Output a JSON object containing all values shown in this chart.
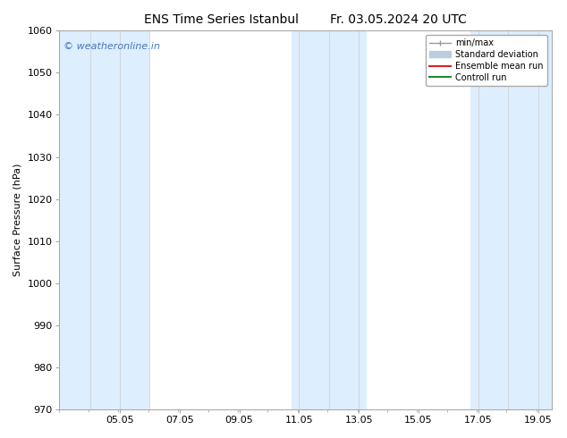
{
  "title_left": "ENS Time Series Istanbul",
  "title_right": "Fr. 03.05.2024 20 UTC",
  "ylabel": "Surface Pressure (hPa)",
  "ylim": [
    970,
    1060
  ],
  "yticks": [
    970,
    980,
    990,
    1000,
    1010,
    1020,
    1030,
    1040,
    1050,
    1060
  ],
  "xlim": [
    3.0,
    19.5
  ],
  "xticks": [
    5.05,
    7.05,
    9.05,
    11.05,
    13.05,
    15.05,
    17.05,
    19.05
  ],
  "xtick_labels": [
    "05.05",
    "07.05",
    "09.05",
    "11.05",
    "13.05",
    "15.05",
    "17.05",
    "19.05"
  ],
  "watermark": "© weatheronline.in",
  "watermark_color": "#4477bb",
  "bg_color": "#ffffff",
  "plot_bg_color": "#ffffff",
  "shaded_bands": [
    {
      "x_start": 3.0,
      "x_end": 6.05,
      "color": "#ddeeff"
    },
    {
      "x_start": 10.8,
      "x_end": 13.3,
      "color": "#ddeeff"
    },
    {
      "x_start": 16.8,
      "x_end": 19.5,
      "color": "#ddeeff"
    }
  ],
  "band_dividers": [
    4.05,
    5.05,
    6.05,
    11.05,
    12.05,
    13.05,
    17.05,
    18.05,
    19.05
  ],
  "legend_items": [
    {
      "label": "min/max",
      "type": "minmax",
      "color": "#999999"
    },
    {
      "label": "Standard deviation",
      "type": "patch",
      "color": "#bbccdd"
    },
    {
      "label": "Ensemble mean run",
      "type": "line",
      "color": "#dd2222"
    },
    {
      "label": "Controll run",
      "type": "line",
      "color": "#228833"
    }
  ],
  "spine_color": "#aaaaaa",
  "tick_label_fontsize": 8,
  "ylabel_fontsize": 8,
  "title_fontsize": 10,
  "watermark_fontsize": 8
}
